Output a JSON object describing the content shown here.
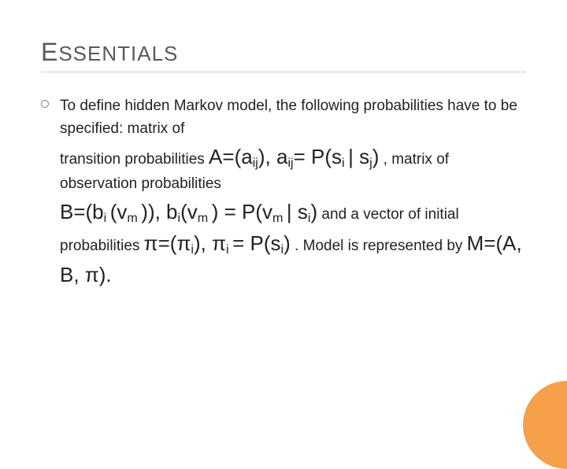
{
  "title_cap": "E",
  "title_rest": "SSENTIALS",
  "line1": "To define hidden Markov model, the following probabilities  have to be specified: matrix of",
  "line2a": "transition probabilities ",
  "eqA1": "A=(a",
  "eqA1sub": "ij",
  "eqA2": "),  a",
  "eqA2sub": "ij",
  "eqA3": "= P(s",
  "eqA3sub": "i ",
  "eqA4": "| s",
  "eqA4sub": "j",
  "eqA5": ")",
  "line2c": " , matrix of observation probabilities",
  "eqB1": "B=(b",
  "eqB1sub": "i ",
  "eqB2": "(v",
  "eqB2sub": "m ",
  "eqB3": ")), b",
  "eqB3sub": "i",
  "eqB4": "(v",
  "eqB4sub": "m ",
  "eqB5": ") = P(v",
  "eqB5sub": "m ",
  "eqB6": "| s",
  "eqB6sub": "i",
  "eqB7": ")",
  "line3a": " and a vector of initial probabilities  ",
  "eqP1": "π=(π",
  "eqP1sub": "i",
  "eqP2": "),  π",
  "eqP2sub": "i ",
  "eqP3": "= P(s",
  "eqP3sub": "i",
  "eqP4": ")",
  "line3b": " .  Model is represented by ",
  "eqM": "M=(A, B, π).",
  "colors": {
    "accent": "#f6a04a",
    "title": "#5a5a5a",
    "text": "#222222",
    "rule": "#cfcfcf",
    "background": "#ffffff"
  }
}
